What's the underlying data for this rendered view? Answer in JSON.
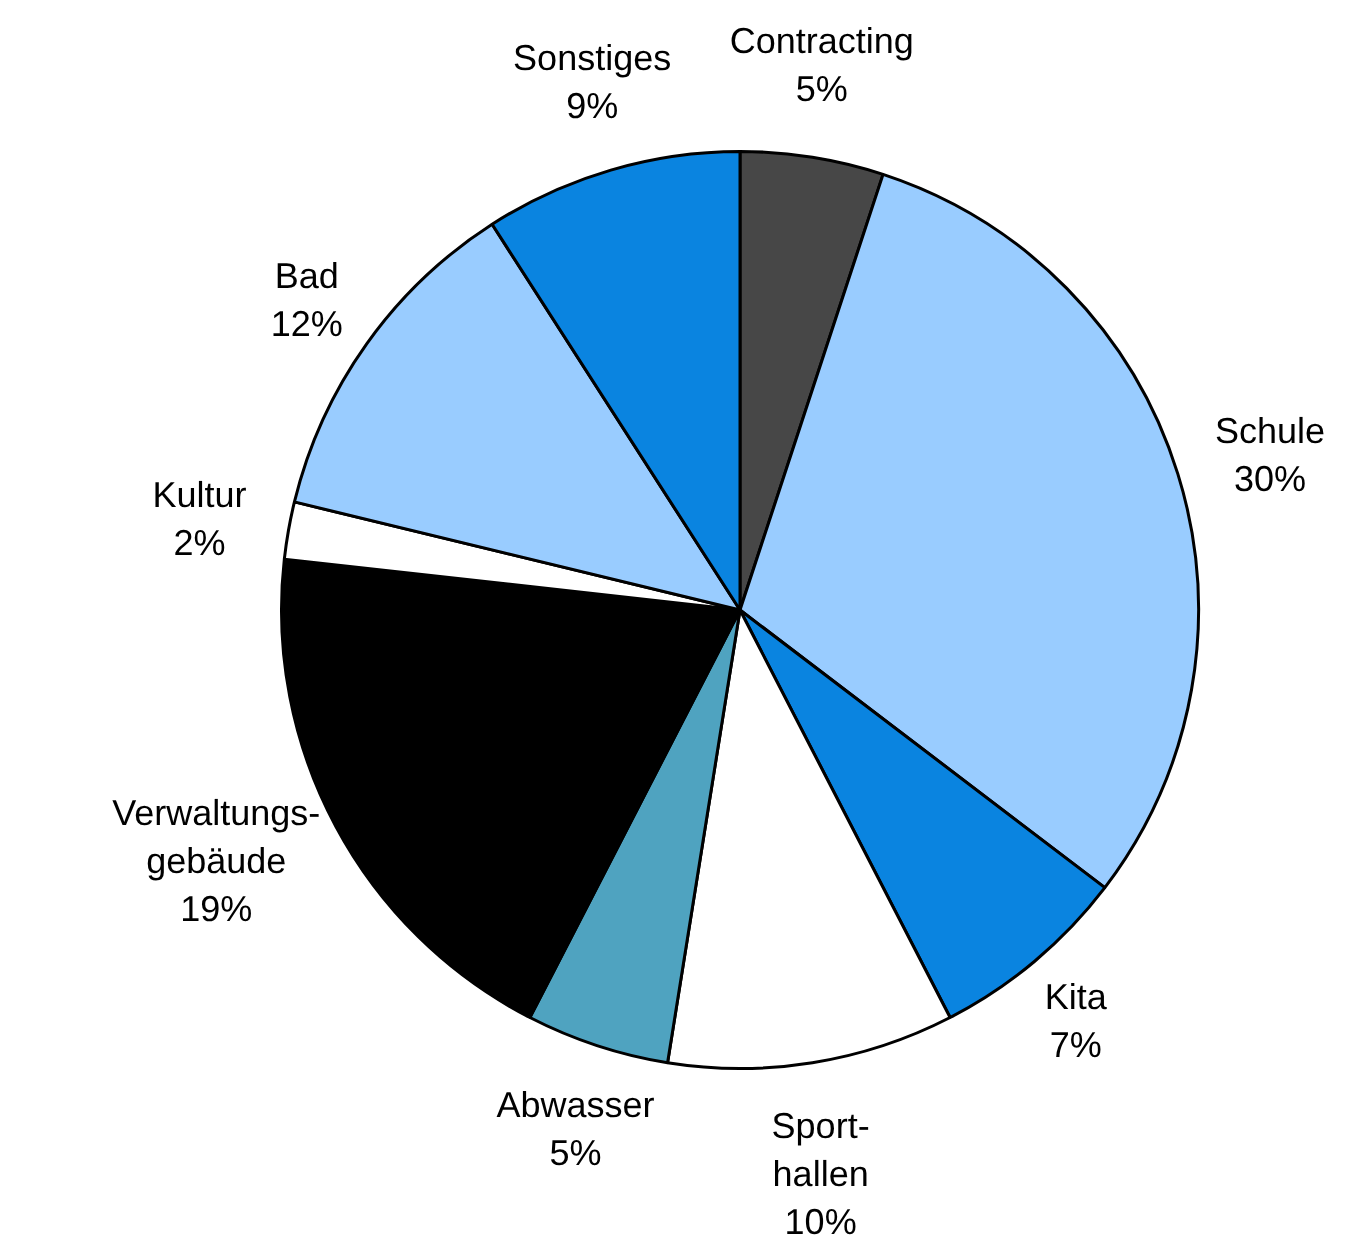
{
  "chart_data": {
    "type": "pie",
    "categories": [
      "Contracting",
      "Schule",
      "Kita",
      "Sport-hallen",
      "Abwasser",
      "Verwaltungs-gebäude",
      "Kultur",
      "Bad",
      "Sonstiges"
    ],
    "values": [
      5,
      30,
      7,
      10,
      5,
      19,
      2,
      12,
      9
    ],
    "value_labels": [
      "5%",
      "30%",
      "7%",
      "10%",
      "5%",
      "19%",
      "2%",
      "12%",
      "9%"
    ],
    "colors": [
      "#474747",
      "#99ccff",
      "#0a84e0",
      "#ffffff",
      "#4fa3c0",
      "#000000",
      "#ffffff",
      "#99ccff",
      "#0a84e0"
    ],
    "legend": false
  }
}
